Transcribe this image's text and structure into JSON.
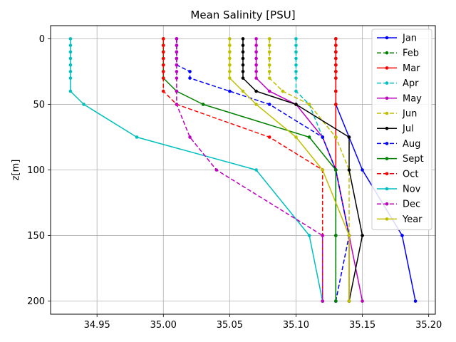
{
  "chart_data": {
    "type": "line",
    "title": "Mean Salinity [PSU]",
    "xlabel": "",
    "ylabel": "z[m]",
    "xlim": [
      34.915,
      35.205
    ],
    "ylim": [
      210,
      -10
    ],
    "y_inverted": true,
    "grid": true,
    "legend_position": "upper right",
    "x_ticks": [
      34.95,
      35.0,
      35.05,
      35.1,
      35.15,
      35.2
    ],
    "x_tick_labels": [
      "34.95",
      "35.00",
      "35.05",
      "35.10",
      "35.15",
      "35.20"
    ],
    "y_ticks": [
      0,
      50,
      100,
      150,
      200
    ],
    "y_tick_labels": [
      "0",
      "50",
      "100",
      "150",
      "200"
    ],
    "series": [
      {
        "name": "Jan",
        "color": "#0000ff",
        "dash": "solid",
        "x": [
          35.13,
          35.13,
          35.13,
          35.13,
          35.13,
          35.13,
          35.13,
          35.13,
          35.13,
          35.14,
          35.15,
          35.18,
          35.19
        ],
        "y": [
          0,
          5,
          10,
          15,
          20,
          25,
          30,
          40,
          50,
          75,
          100,
          150,
          200
        ]
      },
      {
        "name": "Feb",
        "color": "#008000",
        "dash": "dashed",
        "x": [
          35.13,
          35.13,
          35.13,
          35.13,
          35.13,
          35.13,
          35.13,
          35.13,
          35.13,
          35.13,
          35.13,
          35.13,
          35.13
        ],
        "y": [
          0,
          5,
          10,
          15,
          20,
          25,
          30,
          40,
          50,
          75,
          100,
          150,
          200
        ]
      },
      {
        "name": "Mar",
        "color": "#ff0000",
        "dash": "solid",
        "x": [
          35.13,
          35.13,
          35.13,
          35.13,
          35.13,
          35.13,
          35.13,
          35.13,
          35.13,
          35.13,
          35.13,
          35.14,
          35.14
        ],
        "y": [
          0,
          5,
          10,
          15,
          20,
          25,
          30,
          40,
          50,
          75,
          100,
          150,
          200
        ]
      },
      {
        "name": "Apr",
        "color": "#00bfbf",
        "dash": "dashed",
        "x": [
          35.1,
          35.1,
          35.1,
          35.1,
          35.1,
          35.1,
          35.1,
          35.1,
          35.11,
          35.12,
          35.13,
          35.13,
          35.13
        ],
        "y": [
          0,
          5,
          10,
          15,
          20,
          25,
          30,
          40,
          50,
          75,
          100,
          150,
          200
        ]
      },
      {
        "name": "May",
        "color": "#bf00bf",
        "dash": "solid",
        "x": [
          35.07,
          35.07,
          35.07,
          35.07,
          35.07,
          35.07,
          35.07,
          35.08,
          35.1,
          35.12,
          35.13,
          35.14,
          35.15
        ],
        "y": [
          0,
          5,
          10,
          15,
          20,
          25,
          30,
          40,
          50,
          75,
          100,
          150,
          200
        ]
      },
      {
        "name": "Jun",
        "color": "#bfbf00",
        "dash": "dashed",
        "x": [
          35.08,
          35.08,
          35.08,
          35.08,
          35.08,
          35.08,
          35.08,
          35.09,
          35.11,
          35.13,
          35.14,
          35.14,
          35.14
        ],
        "y": [
          0,
          5,
          10,
          15,
          20,
          25,
          30,
          40,
          50,
          75,
          100,
          150,
          200
        ]
      },
      {
        "name": "Jul",
        "color": "#000000",
        "dash": "solid",
        "x": [
          35.06,
          35.06,
          35.06,
          35.06,
          35.06,
          35.06,
          35.06,
          35.07,
          35.1,
          35.14,
          35.14,
          35.15,
          35.14
        ],
        "y": [
          0,
          5,
          10,
          15,
          20,
          25,
          30,
          40,
          50,
          75,
          100,
          150,
          200
        ]
      },
      {
        "name": "Aug",
        "color": "#0000ff",
        "dash": "dashed",
        "x": [
          35.01,
          35.01,
          35.01,
          35.01,
          35.01,
          35.02,
          35.02,
          35.05,
          35.08,
          35.12,
          35.13,
          35.14,
          35.13
        ],
        "y": [
          0,
          5,
          10,
          15,
          20,
          25,
          30,
          40,
          50,
          75,
          100,
          150,
          200
        ]
      },
      {
        "name": "Sept",
        "color": "#008000",
        "dash": "solid",
        "x": [
          35.0,
          35.0,
          35.0,
          35.0,
          35.0,
          35.0,
          35.0,
          35.01,
          35.03,
          35.11,
          35.13,
          35.13,
          35.13
        ],
        "y": [
          0,
          5,
          10,
          15,
          20,
          25,
          30,
          40,
          50,
          75,
          100,
          150,
          200
        ]
      },
      {
        "name": "Oct",
        "color": "#ff0000",
        "dash": "dashed",
        "x": [
          35.0,
          35.0,
          35.0,
          35.0,
          35.0,
          35.0,
          35.0,
          35.0,
          35.01,
          35.08,
          35.12,
          35.12,
          35.12
        ],
        "y": [
          0,
          5,
          10,
          15,
          20,
          25,
          30,
          40,
          50,
          75,
          100,
          150,
          200
        ]
      },
      {
        "name": "Nov",
        "color": "#00bfbf",
        "dash": "solid",
        "x": [
          34.93,
          34.93,
          34.93,
          34.93,
          34.93,
          34.93,
          34.93,
          34.93,
          34.94,
          34.98,
          35.07,
          35.11,
          35.12
        ],
        "y": [
          0,
          5,
          10,
          15,
          20,
          25,
          30,
          40,
          50,
          75,
          100,
          150,
          200
        ]
      },
      {
        "name": "Dec",
        "color": "#bf00bf",
        "dash": "dashed",
        "x": [
          35.01,
          35.01,
          35.01,
          35.01,
          35.01,
          35.01,
          35.01,
          35.01,
          35.01,
          35.02,
          35.04,
          35.12,
          35.12
        ],
        "y": [
          0,
          5,
          10,
          15,
          20,
          25,
          30,
          40,
          50,
          75,
          100,
          150,
          200
        ]
      },
      {
        "name": "Year",
        "color": "#bfbf00",
        "dash": "solid",
        "x": [
          35.05,
          35.05,
          35.05,
          35.05,
          35.05,
          35.05,
          35.05,
          35.06,
          35.07,
          35.1,
          35.12,
          35.14,
          35.14
        ],
        "y": [
          0,
          5,
          10,
          15,
          20,
          25,
          30,
          40,
          50,
          75,
          100,
          150,
          200
        ]
      }
    ]
  }
}
